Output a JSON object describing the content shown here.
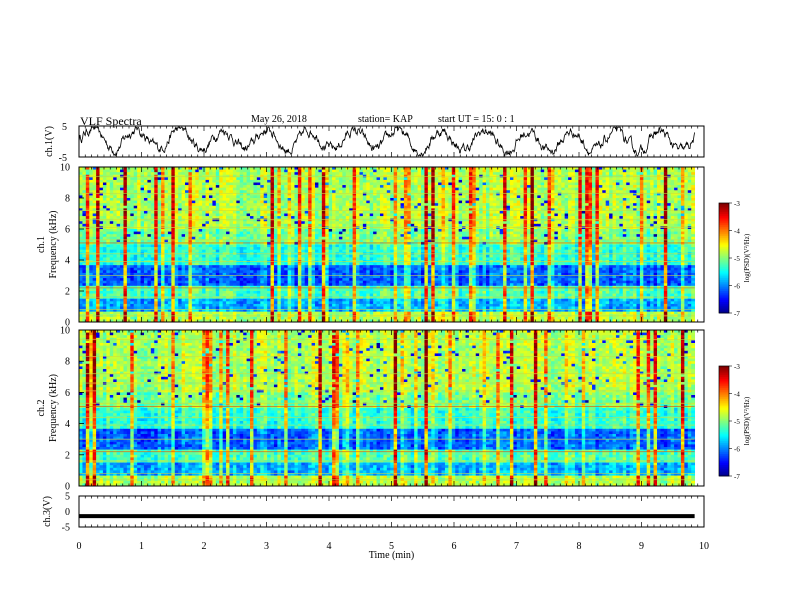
{
  "header": {
    "title": "VLF Spectra",
    "date": "May 26, 2018",
    "station": "station= KAP",
    "start": "start  UT =   15: 0  : 1"
  },
  "chart_data": [
    {
      "type": "line",
      "name": "ch1-waveform",
      "ylabel": "ch.1(V)",
      "ylim": [
        -5,
        5
      ],
      "yticks": [
        "5",
        "-5"
      ],
      "xlim": [
        0,
        10
      ]
    },
    {
      "type": "heatmap",
      "name": "ch1-spectrogram",
      "ylabel": "Frequency (kHz)",
      "channel_label": "ch.1",
      "ylim": [
        0,
        10
      ],
      "yticks": [
        "0",
        "2",
        "4",
        "6",
        "8",
        "10"
      ],
      "xlim": [
        0,
        9.85
      ],
      "colorbar": {
        "label": "log(PSD)(V²/Hz)",
        "ticks": [
          "-3",
          "-4",
          "-5",
          "-6",
          "-7"
        ],
        "range": [
          -7,
          -3
        ]
      }
    },
    {
      "type": "heatmap",
      "name": "ch2-spectrogram",
      "ylabel": "Frequency (kHz)",
      "channel_label": "ch.2",
      "ylim": [
        0,
        10
      ],
      "yticks": [
        "0",
        "2",
        "4",
        "6",
        "8",
        "10"
      ],
      "xlim": [
        0,
        9.85
      ],
      "colorbar": {
        "label": "log(PSD)(V²/Hz)",
        "ticks": [
          "-3",
          "-4",
          "-5",
          "-6",
          "-7"
        ],
        "range": [
          -7,
          -3
        ]
      }
    },
    {
      "type": "line",
      "name": "ch3-waveform",
      "ylabel": "ch.3(V)",
      "ylim": [
        -5,
        5
      ],
      "yticks": [
        "5",
        "0",
        "-5"
      ],
      "x": [
        0,
        9.85
      ],
      "y": [
        -1.5,
        -1.5
      ]
    }
  ],
  "xaxis": {
    "label": "Time (min)",
    "ticks": [
      "0",
      "1",
      "2",
      "3",
      "4",
      "5",
      "6",
      "7",
      "8",
      "9",
      "10"
    ],
    "range": [
      0,
      10
    ]
  },
  "colors": {
    "line": "#000000",
    "frame": "#000000"
  }
}
